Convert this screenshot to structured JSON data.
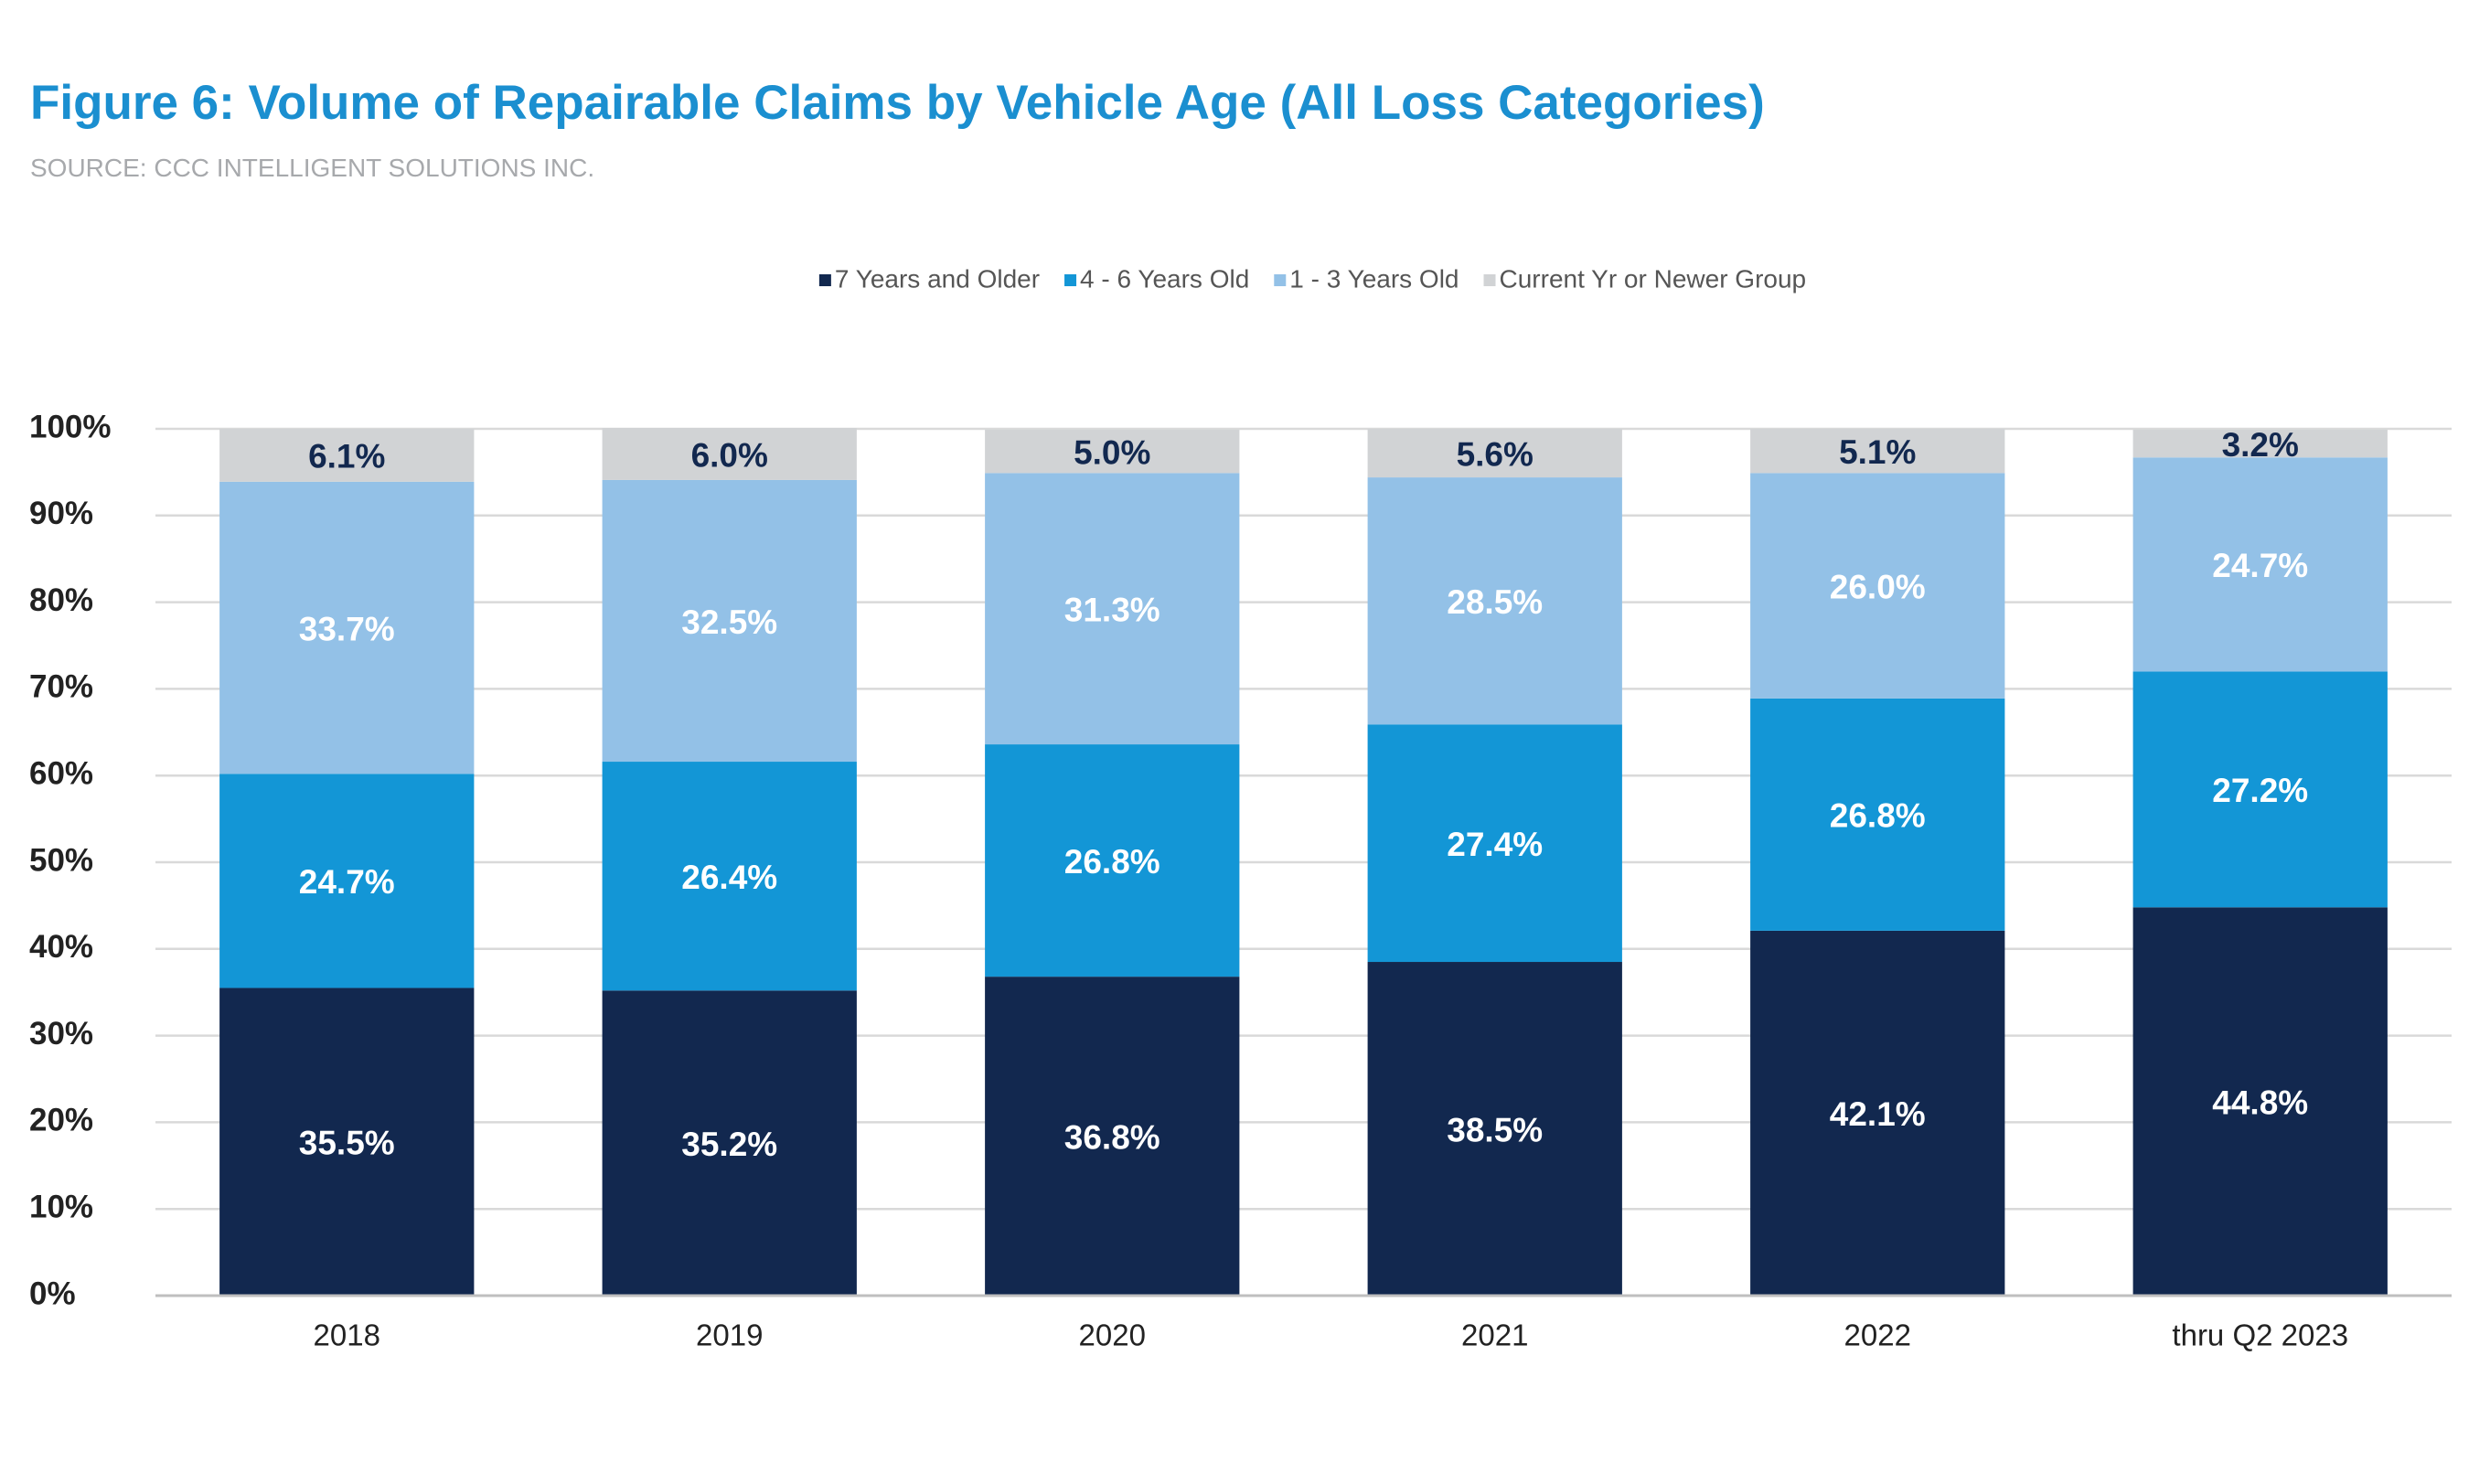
{
  "chart_data": {
    "type": "stacked_bar",
    "title": "Figure 6: Volume of Repairable Claims by Vehicle Age (All Loss Categories)",
    "subtitle": "SOURCE: CCC INTELLIGENT SOLUTIONS INC.",
    "categories": [
      "2018",
      "2019",
      "2020",
      "2021",
      "2022",
      "thru Q2 2023"
    ],
    "series": [
      {
        "name": "7 Years and Older",
        "color": "#12284f",
        "values": [
          35.5,
          35.2,
          36.8,
          38.5,
          42.1,
          44.8
        ],
        "value_labels": [
          "35.5%",
          "35.2%",
          "36.8%",
          "38.5%",
          "42.1%",
          "44.8%"
        ]
      },
      {
        "name": "4 - 6 Years Old",
        "color": "#1396d6",
        "values": [
          24.7,
          26.4,
          26.8,
          27.4,
          26.8,
          27.2
        ],
        "value_labels": [
          "24.7%",
          "26.4%",
          "26.8%",
          "27.4%",
          "26.8%",
          "27.2%"
        ]
      },
      {
        "name": "1 - 3 Years Old",
        "color": "#93c1e7",
        "values": [
          33.7,
          32.5,
          31.3,
          28.5,
          26.0,
          24.7
        ],
        "value_labels": [
          "33.7%",
          "32.5%",
          "31.3%",
          "28.5%",
          "26.0%",
          "24.7%"
        ]
      },
      {
        "name": "Current Yr or Newer Group",
        "color": "#d1d3d5",
        "values": [
          6.1,
          6.0,
          5.0,
          5.6,
          5.1,
          3.2
        ],
        "value_labels": [
          "6.1%",
          "6.0%",
          "5.0%",
          "5.6%",
          "5.1%",
          "3.2%"
        ]
      }
    ],
    "ylim": [
      0,
      100
    ],
    "yticks": [
      {
        "value": 0,
        "label": "0%"
      },
      {
        "value": 10,
        "label": "10%"
      },
      {
        "value": 20,
        "label": "20%"
      },
      {
        "value": 30,
        "label": "30%"
      },
      {
        "value": 40,
        "label": "40%"
      },
      {
        "value": 50,
        "label": "50%"
      },
      {
        "value": 60,
        "label": "60%"
      },
      {
        "value": 70,
        "label": "70%"
      },
      {
        "value": 80,
        "label": "80%"
      },
      {
        "value": 90,
        "label": "90%"
      },
      {
        "value": 100,
        "label": "100%"
      }
    ],
    "grid": true,
    "legend": "top"
  }
}
